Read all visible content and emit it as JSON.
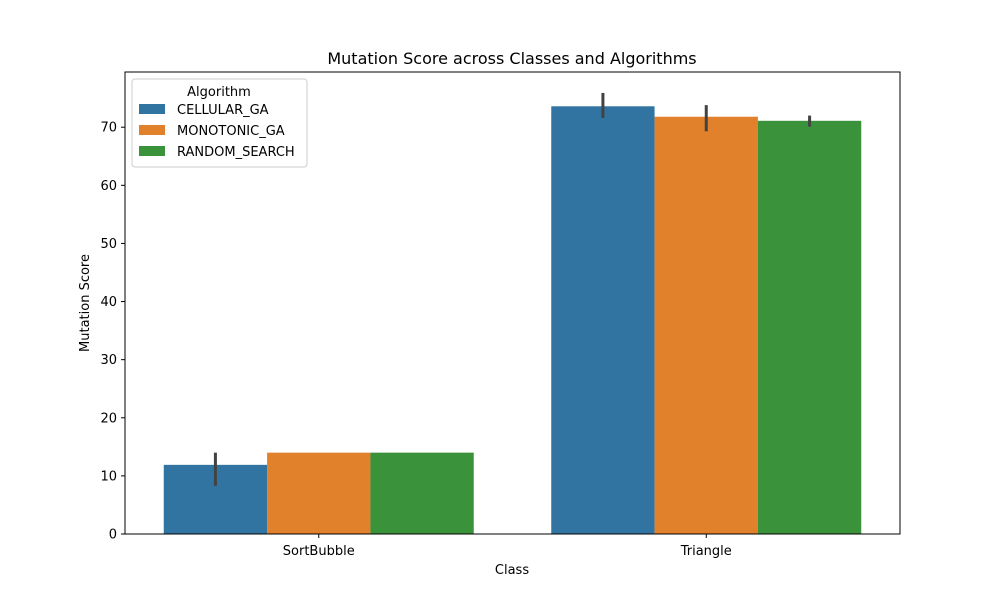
{
  "chart_data": {
    "type": "bar",
    "title": "Mutation Score across Classes and Algorithms",
    "xlabel": "Class",
    "ylabel": "Mutation Score",
    "categories": [
      "SortBubble",
      "Triangle"
    ],
    "ylim": [
      0,
      79.5
    ],
    "yticks": [
      0,
      10,
      20,
      30,
      40,
      50,
      60,
      70
    ],
    "grid": false,
    "legend": {
      "title": "Algorithm",
      "placement": "top-left"
    },
    "series": [
      {
        "name": "CELLULAR_GA",
        "color": "#3274a1",
        "values": [
          11.9,
          73.6
        ],
        "error": [
          [
            8.3,
            14.0
          ],
          [
            71.6,
            75.9
          ]
        ]
      },
      {
        "name": "MONOTONIC_GA",
        "color": "#e1812c",
        "values": [
          14.0,
          71.8
        ],
        "error": [
          null,
          [
            69.3,
            73.8
          ]
        ]
      },
      {
        "name": "RANDOM_SEARCH",
        "color": "#3a923a",
        "values": [
          14.0,
          71.1
        ],
        "error": [
          null,
          [
            70.1,
            72.0
          ]
        ]
      }
    ]
  }
}
